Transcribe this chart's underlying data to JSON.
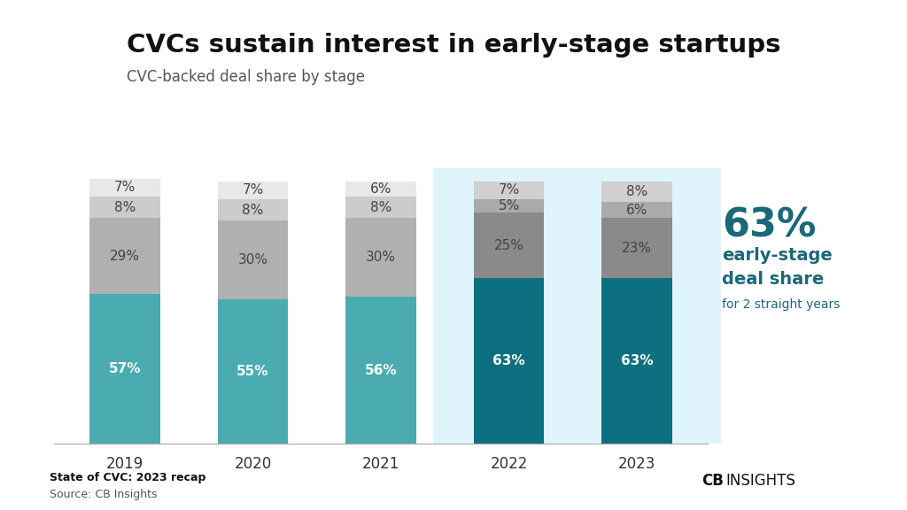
{
  "title": "CVCs sustain interest in early-stage startups",
  "subtitle": "CVC-backed deal share by stage",
  "years": [
    "2019",
    "2020",
    "2021",
    "2022",
    "2023"
  ],
  "segments": {
    "early": [
      57,
      55,
      56,
      63,
      63
    ],
    "mid": [
      29,
      30,
      30,
      25,
      23
    ],
    "late": [
      8,
      8,
      8,
      5,
      6
    ],
    "other": [
      7,
      7,
      6,
      7,
      8
    ]
  },
  "colors": {
    "early_old": "#4aacb0",
    "early_new": "#0d7080",
    "mid_old": "#b0b0b0",
    "mid_new": "#8a8a8a",
    "late_old": "#cccccc",
    "late_new": "#aaaaaa",
    "other_old": "#e8e8e8",
    "other_new": "#d0d0d0"
  },
  "highlight_color": "#e0f4fb",
  "annotation_color": "#1a6878",
  "bar_width": 0.55,
  "label_fontsize": 11,
  "title_fontsize": 21,
  "subtitle_fontsize": 12,
  "year_fontsize": 12,
  "footer_bold": "State of CVC: 2023 recap",
  "footer_normal": "Source: CB Insights",
  "background": "#ffffff"
}
